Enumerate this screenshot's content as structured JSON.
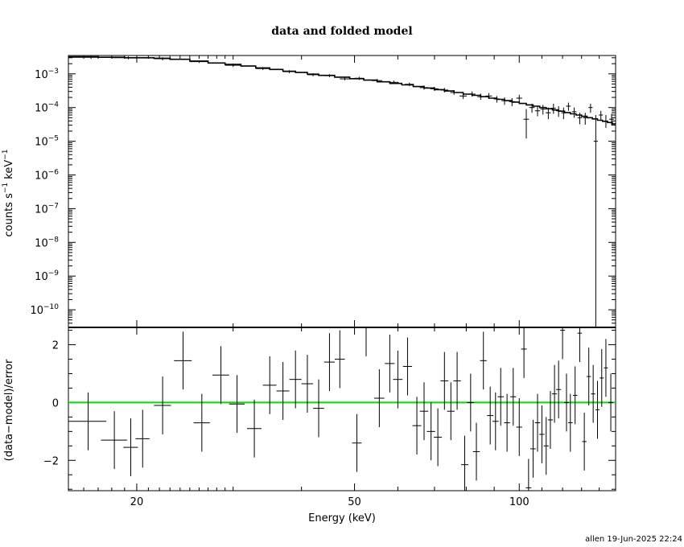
{
  "chart_data": [
    {
      "type": "scatter",
      "title": "data and folded model",
      "xlabel": "",
      "ylabel_base": "counts s",
      "ylabel_mid": " keV",
      "ylabel_sup": "−1",
      "xscale": "log",
      "yscale": "log",
      "xlim": [
        15,
        150
      ],
      "ylim": [
        3e-11,
        0.0035
      ],
      "grid": false,
      "legend": "none",
      "y_ticks": [
        {
          "value": 0.001,
          "base": "10",
          "exp": "−3"
        },
        {
          "value": 0.0001,
          "base": "10",
          "exp": "−4"
        },
        {
          "value": 1e-05,
          "base": "10",
          "exp": "−5"
        },
        {
          "value": 1e-06,
          "base": "10",
          "exp": "−6"
        },
        {
          "value": 1e-07,
          "base": "10",
          "exp": "−7"
        },
        {
          "value": 1e-08,
          "base": "10",
          "exp": "−8"
        },
        {
          "value": 1e-09,
          "base": "10",
          "exp": "−9"
        },
        {
          "value": 1e-10,
          "base": "10",
          "exp": "−10"
        }
      ],
      "model_steps": [
        [
          15,
          0.0032
        ],
        [
          17,
          0.0031
        ],
        [
          19,
          0.003
        ],
        [
          21.5,
          0.0029
        ],
        [
          23,
          0.0027
        ],
        [
          25,
          0.0024
        ],
        [
          27,
          0.0021
        ],
        [
          29,
          0.0019
        ],
        [
          31,
          0.0017
        ],
        [
          33,
          0.0015
        ],
        [
          35,
          0.00135
        ],
        [
          37,
          0.0012
        ],
        [
          39,
          0.0011
        ],
        [
          41,
          0.00098
        ],
        [
          43,
          0.0009
        ],
        [
          46,
          0.0008
        ],
        [
          49,
          0.00072
        ],
        [
          52,
          0.00065
        ],
        [
          55,
          0.00058
        ],
        [
          58,
          0.00052
        ],
        [
          61,
          0.00047
        ],
        [
          64,
          0.00042
        ],
        [
          67,
          0.00038
        ],
        [
          70,
          0.00034
        ],
        [
          73,
          0.00031
        ],
        [
          76,
          0.00028
        ],
        [
          79,
          0.00025
        ],
        [
          82,
          0.00023
        ],
        [
          85,
          0.00021
        ],
        [
          88,
          0.00019
        ],
        [
          91,
          0.000175
        ],
        [
          94,
          0.00016
        ],
        [
          97,
          0.000145
        ],
        [
          100,
          0.000132
        ],
        [
          103,
          0.00012
        ],
        [
          106,
          0.00011
        ],
        [
          109,
          0.0001
        ],
        [
          112,
          9.2e-05
        ],
        [
          115,
          8.5e-05
        ],
        [
          118,
          7.8e-05
        ],
        [
          121,
          7.1e-05
        ],
        [
          124,
          6.5e-05
        ],
        [
          127,
          6e-05
        ],
        [
          130,
          5.5e-05
        ],
        [
          133,
          5e-05
        ],
        [
          136,
          4.6e-05
        ],
        [
          139,
          4.2e-05
        ],
        [
          142,
          3.9e-05
        ],
        [
          145,
          3.6e-05
        ],
        [
          148,
          3.3e-05
        ],
        [
          150,
          3.1e-05
        ]
      ],
      "points": [
        {
          "x": 16.5,
          "xerr": 1.5,
          "y": 0.0031,
          "ylo": 0.0028,
          "yhi": 0.0034
        },
        {
          "x": 19.3,
          "xerr": 1.3,
          "y": 0.003,
          "ylo": 0.0027,
          "yhi": 0.0033
        },
        {
          "x": 22.3,
          "xerr": 0.8,
          "y": 0.0028,
          "ylo": 0.0025,
          "yhi": 0.0031
        },
        {
          "x": 26,
          "xerr": 1,
          "y": 0.0023,
          "ylo": 0.0021,
          "yhi": 0.0025
        },
        {
          "x": 30,
          "xerr": 1,
          "y": 0.0018,
          "ylo": 0.0016,
          "yhi": 0.002
        },
        {
          "x": 34,
          "xerr": 1,
          "y": 0.00143,
          "ylo": 0.0013,
          "yhi": 0.00158
        },
        {
          "x": 38,
          "xerr": 1,
          "y": 0.00116,
          "ylo": 0.00105,
          "yhi": 0.00128
        },
        {
          "x": 42,
          "xerr": 1,
          "y": 0.00094,
          "ylo": 0.00085,
          "yhi": 0.00104
        },
        {
          "x": 45,
          "xerr": 1,
          "y": 0.00088,
          "ylo": 0.0008,
          "yhi": 0.00097
        },
        {
          "x": 48,
          "xerr": 1,
          "y": 0.00071,
          "ylo": 0.00064,
          "yhi": 0.00079
        },
        {
          "x": 51,
          "xerr": 1,
          "y": 0.00074,
          "ylo": 0.00066,
          "yhi": 0.00082
        },
        {
          "x": 55,
          "xerr": 1.2,
          "y": 0.00063,
          "ylo": 0.00056,
          "yhi": 0.0007
        },
        {
          "x": 59,
          "xerr": 1.2,
          "y": 0.00056,
          "ylo": 0.0005,
          "yhi": 0.00063
        },
        {
          "x": 63,
          "xerr": 1.2,
          "y": 0.00049,
          "ylo": 0.00043,
          "yhi": 0.00055
        },
        {
          "x": 67,
          "xerr": 1.2,
          "y": 0.00039,
          "ylo": 0.00034,
          "yhi": 0.00045
        },
        {
          "x": 70,
          "xerr": 1.2,
          "y": 0.00036,
          "ylo": 0.00031,
          "yhi": 0.00041
        },
        {
          "x": 73,
          "xerr": 1.2,
          "y": 0.00033,
          "ylo": 0.00028,
          "yhi": 0.00038
        },
        {
          "x": 76,
          "xerr": 1.2,
          "y": 0.00028,
          "ylo": 0.00024,
          "yhi": 0.00033
        },
        {
          "x": 79,
          "xerr": 1.2,
          "y": 0.00022,
          "ylo": 0.00018,
          "yhi": 0.00027
        },
        {
          "x": 82,
          "xerr": 1.2,
          "y": 0.00025,
          "ylo": 0.00021,
          "yhi": 0.0003
        },
        {
          "x": 85,
          "xerr": 1.2,
          "y": 0.00021,
          "ylo": 0.00017,
          "yhi": 0.00026
        },
        {
          "x": 88,
          "xerr": 1.2,
          "y": 0.00022,
          "ylo": 0.00018,
          "yhi": 0.00027
        },
        {
          "x": 91,
          "xerr": 1.2,
          "y": 0.00018,
          "ylo": 0.00014,
          "yhi": 0.00022
        },
        {
          "x": 94,
          "xerr": 1.2,
          "y": 0.00016,
          "ylo": 0.00012,
          "yhi": 0.0002
        },
        {
          "x": 97,
          "xerr": 1.2,
          "y": 0.00015,
          "ylo": 0.00011,
          "yhi": 0.00019
        },
        {
          "x": 100,
          "xerr": 1.2,
          "y": 0.00019,
          "ylo": 0.00015,
          "yhi": 0.00024
        },
        {
          "x": 103,
          "xerr": 1.2,
          "y": 4.5e-05,
          "ylo": 1.2e-05,
          "yhi": 9e-05
        },
        {
          "x": 105.5,
          "xerr": 1.2,
          "y": 0.0001,
          "ylo": 7e-05,
          "yhi": 0.00013
        },
        {
          "x": 108,
          "xerr": 1.2,
          "y": 8e-05,
          "ylo": 5.5e-05,
          "yhi": 0.00011
        },
        {
          "x": 110.5,
          "xerr": 1.2,
          "y": 9e-05,
          "ylo": 6.2e-05,
          "yhi": 0.00012
        },
        {
          "x": 113,
          "xerr": 1.2,
          "y": 7e-05,
          "ylo": 4.5e-05,
          "yhi": 0.0001
        },
        {
          "x": 115.5,
          "xerr": 1.2,
          "y": 9.5e-05,
          "ylo": 6.5e-05,
          "yhi": 0.00013
        },
        {
          "x": 118,
          "xerr": 1.2,
          "y": 8e-05,
          "ylo": 5.3e-05,
          "yhi": 0.00011
        },
        {
          "x": 120.5,
          "xerr": 1.2,
          "y": 7e-05,
          "ylo": 4.5e-05,
          "yhi": 0.0001
        },
        {
          "x": 123,
          "xerr": 1.2,
          "y": 0.00011,
          "ylo": 8e-05,
          "yhi": 0.00014
        },
        {
          "x": 126,
          "xerr": 1.2,
          "y": 7.5e-05,
          "ylo": 5e-05,
          "yhi": 0.0001
        },
        {
          "x": 129,
          "xerr": 1.2,
          "y": 5e-05,
          "ylo": 3.2e-05,
          "yhi": 7e-05
        },
        {
          "x": 132,
          "xerr": 1.2,
          "y": 5e-05,
          "ylo": 3.1e-05,
          "yhi": 7e-05
        },
        {
          "x": 135,
          "xerr": 1.2,
          "y": 0.0001,
          "ylo": 7e-05,
          "yhi": 0.00013
        },
        {
          "x": 138,
          "xerr": 1.2,
          "y": 1e-05,
          "ylo": 3e-11,
          "yhi": 6e-05
        },
        {
          "x": 141,
          "xerr": 1.2,
          "y": 6e-05,
          "ylo": 4e-05,
          "yhi": 8e-05
        },
        {
          "x": 144,
          "xerr": 1.2,
          "y": 4e-05,
          "ylo": 2.5e-05,
          "yhi": 6e-05
        },
        {
          "x": 147.5,
          "xerr": 1.5,
          "y": 4.5e-05,
          "ylo": 3e-05,
          "yhi": 6.5e-05
        }
      ]
    },
    {
      "type": "scatter",
      "title": "",
      "xlabel": "Energy (keV)",
      "ylabel": "(data−model)/error",
      "xscale": "log",
      "xlim": [
        15,
        150
      ],
      "ylim": [
        -3.05,
        2.6
      ],
      "grid": false,
      "legend": "none",
      "zero_line_color": "#00dd00",
      "x_ticks": [
        {
          "value": 20,
          "label": "20"
        },
        {
          "value": 50,
          "label": "50"
        },
        {
          "value": 100,
          "label": "100"
        }
      ],
      "y_ticks": [
        {
          "value": 2,
          "label": "2"
        },
        {
          "value": 0,
          "label": "0"
        },
        {
          "value": -2,
          "label": "−2"
        }
      ],
      "residuals": [
        {
          "x": 16.3,
          "xerr": 1.3,
          "y": -0.65
        },
        {
          "x": 18.2,
          "xerr": 1.0,
          "y": -1.3
        },
        {
          "x": 19.5,
          "xerr": 0.6,
          "y": -1.55
        },
        {
          "x": 20.5,
          "xerr": 0.6,
          "y": -1.25
        },
        {
          "x": 22.3,
          "xerr": 0.8,
          "y": -0.1
        },
        {
          "x": 24.3,
          "xerr": 0.9,
          "y": 1.45
        },
        {
          "x": 26.3,
          "xerr": 0.9,
          "y": -0.7
        },
        {
          "x": 28.5,
          "xerr": 1.0,
          "y": 0.95
        },
        {
          "x": 30.5,
          "xerr": 1.0,
          "y": -0.05
        },
        {
          "x": 32.8,
          "xerr": 1.0,
          "y": -0.9
        },
        {
          "x": 35,
          "xerr": 1.0,
          "y": 0.6
        },
        {
          "x": 37,
          "xerr": 1.0,
          "y": 0.4
        },
        {
          "x": 39,
          "xerr": 1.0,
          "y": 0.8
        },
        {
          "x": 41,
          "xerr": 1.0,
          "y": 0.65
        },
        {
          "x": 43,
          "xerr": 1.0,
          "y": -0.2
        },
        {
          "x": 45,
          "xerr": 1.0,
          "y": 1.4
        },
        {
          "x": 47,
          "xerr": 1.0,
          "y": 1.5
        },
        {
          "x": 50.5,
          "xerr": 1.0,
          "y": -1.4
        },
        {
          "x": 52.5,
          "xerr": 1.0,
          "y": 2.6
        },
        {
          "x": 55.5,
          "xerr": 1.2,
          "y": 0.15
        },
        {
          "x": 58,
          "xerr": 1.2,
          "y": 1.35
        },
        {
          "x": 60,
          "xerr": 1.2,
          "y": 0.8
        },
        {
          "x": 62.5,
          "xerr": 1.2,
          "y": 1.25
        },
        {
          "x": 65,
          "xerr": 1.2,
          "y": -0.8
        },
        {
          "x": 67,
          "xerr": 1.2,
          "y": -0.3
        },
        {
          "x": 69,
          "xerr": 1.2,
          "y": -1.0
        },
        {
          "x": 71,
          "xerr": 1.2,
          "y": -1.2
        },
        {
          "x": 73,
          "xerr": 1.2,
          "y": 0.75
        },
        {
          "x": 75,
          "xerr": 1.2,
          "y": -0.3
        },
        {
          "x": 77,
          "xerr": 1.2,
          "y": 0.75
        },
        {
          "x": 79.5,
          "xerr": 1.2,
          "y": -2.15
        },
        {
          "x": 81.5,
          "xerr": 1.2,
          "y": 0.0
        },
        {
          "x": 83.5,
          "xerr": 1.2,
          "y": -1.7
        },
        {
          "x": 86,
          "xerr": 1.2,
          "y": 1.45
        },
        {
          "x": 88.5,
          "xerr": 1.2,
          "y": -0.45
        },
        {
          "x": 90.5,
          "xerr": 1.2,
          "y": -0.65
        },
        {
          "x": 92.5,
          "xerr": 1.2,
          "y": 0.2
        },
        {
          "x": 95,
          "xerr": 1.2,
          "y": -0.7
        },
        {
          "x": 97.5,
          "xerr": 1.2,
          "y": 0.2
        },
        {
          "x": 100,
          "xerr": 1.2,
          "y": -0.85
        },
        {
          "x": 102,
          "xerr": 1.2,
          "y": 1.85
        },
        {
          "x": 104,
          "xerr": 1.2,
          "y": -2.95
        },
        {
          "x": 106,
          "xerr": 1.2,
          "y": -1.6
        },
        {
          "x": 108,
          "xerr": 1.2,
          "y": -0.7
        },
        {
          "x": 110,
          "xerr": 1.2,
          "y": -1.1
        },
        {
          "x": 112,
          "xerr": 1.2,
          "y": -1.5
        },
        {
          "x": 114,
          "xerr": 1.2,
          "y": -0.6
        },
        {
          "x": 116,
          "xerr": 1.2,
          "y": 0.3
        },
        {
          "x": 118,
          "xerr": 1.2,
          "y": 0.45
        },
        {
          "x": 120,
          "xerr": 1.2,
          "y": 2.5
        },
        {
          "x": 122,
          "xerr": 1.2,
          "y": 0.0
        },
        {
          "x": 124,
          "xerr": 1.2,
          "y": -0.7
        },
        {
          "x": 126.5,
          "xerr": 1.2,
          "y": 0.25
        },
        {
          "x": 129,
          "xerr": 1.2,
          "y": 2.4
        },
        {
          "x": 131.5,
          "xerr": 1.2,
          "y": -1.35
        },
        {
          "x": 134,
          "xerr": 1.2,
          "y": 0.9
        },
        {
          "x": 136.5,
          "xerr": 1.2,
          "y": 0.3
        },
        {
          "x": 139,
          "xerr": 1.2,
          "y": -0.25
        },
        {
          "x": 141.5,
          "xerr": 1.2,
          "y": 0.85
        },
        {
          "x": 144,
          "xerr": 1.2,
          "y": 1.2
        },
        {
          "x": 147,
          "xerr": 1.5,
          "y": 0.0
        }
      ]
    }
  ],
  "footer": {
    "stamp": "allen 19-Jun-2025 22:24"
  }
}
